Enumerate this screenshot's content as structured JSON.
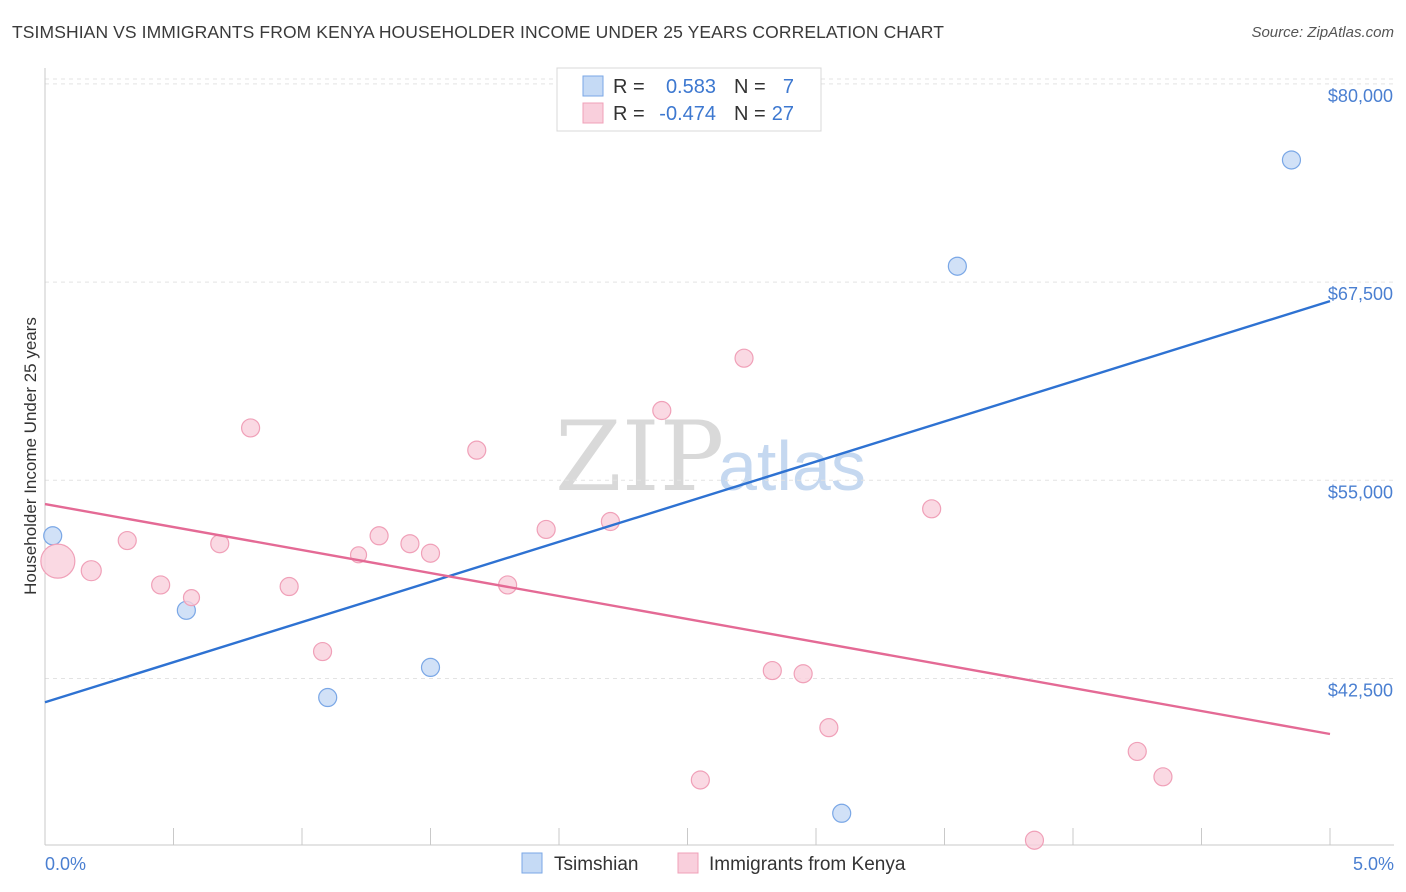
{
  "header": {
    "title": "TSIMSHIAN VS IMMIGRANTS FROM KENYA HOUSEHOLDER INCOME UNDER 25 YEARS CORRELATION CHART",
    "source": "Source: ZipAtlas.com"
  },
  "watermark": {
    "zip": "ZIP",
    "atlas": "atlas"
  },
  "chart_data": {
    "type": "scatter",
    "title": "TSIMSHIAN VS IMMIGRANTS FROM KENYA HOUSEHOLDER INCOME UNDER 25 YEARS CORRELATION CHART",
    "xlabel": "",
    "ylabel": "Householder Income Under 25 years",
    "xlim": [
      0,
      5
    ],
    "ylim": [
      32000,
      81000
    ],
    "x_tick_labels": [
      "0.0%",
      "5.0%"
    ],
    "y_ticks": [
      42500,
      55000,
      67500,
      80000
    ],
    "y_tick_labels": [
      "$42,500",
      "$55,000",
      "$67,500",
      "$80,000"
    ],
    "series": [
      {
        "name": "Tsimshian",
        "color": "#7aa7e6",
        "fill": "#c5daf5",
        "line_color": "#2e72d2",
        "R": "0.583",
        "N": "7",
        "points": [
          {
            "x": 0.03,
            "y": 51500,
            "size": 9
          },
          {
            "x": 0.55,
            "y": 46800,
            "size": 9
          },
          {
            "x": 1.1,
            "y": 41300,
            "size": 9
          },
          {
            "x": 1.5,
            "y": 43200,
            "size": 9
          },
          {
            "x": 3.1,
            "y": 34000,
            "size": 9
          },
          {
            "x": 3.55,
            "y": 68500,
            "size": 9
          },
          {
            "x": 4.85,
            "y": 75200,
            "size": 9
          }
        ],
        "trend": {
          "x0": 0,
          "y0": 41000,
          "x1": 5,
          "y1": 66300
        }
      },
      {
        "name": "Immigrants from Kenya",
        "color": "#f0a0b8",
        "fill": "#f9cfdc",
        "line_color": "#e46a95",
        "R": "-0.474",
        "N": "27",
        "points": [
          {
            "x": 0.05,
            "y": 49900,
            "size": 17
          },
          {
            "x": 0.18,
            "y": 49300,
            "size": 10
          },
          {
            "x": 0.32,
            "y": 51200,
            "size": 9
          },
          {
            "x": 0.45,
            "y": 48400,
            "size": 9
          },
          {
            "x": 0.57,
            "y": 47600,
            "size": 8
          },
          {
            "x": 0.68,
            "y": 51000,
            "size": 9
          },
          {
            "x": 0.8,
            "y": 58300,
            "size": 9
          },
          {
            "x": 0.95,
            "y": 48300,
            "size": 9
          },
          {
            "x": 1.08,
            "y": 44200,
            "size": 9
          },
          {
            "x": 1.22,
            "y": 50300,
            "size": 8
          },
          {
            "x": 1.3,
            "y": 51500,
            "size": 9
          },
          {
            "x": 1.42,
            "y": 51000,
            "size": 9
          },
          {
            "x": 1.5,
            "y": 50400,
            "size": 9
          },
          {
            "x": 1.68,
            "y": 56900,
            "size": 9
          },
          {
            "x": 1.8,
            "y": 48400,
            "size": 9
          },
          {
            "x": 1.95,
            "y": 51900,
            "size": 9
          },
          {
            "x": 2.2,
            "y": 52400,
            "size": 9
          },
          {
            "x": 2.4,
            "y": 59400,
            "size": 9
          },
          {
            "x": 2.55,
            "y": 36100,
            "size": 9
          },
          {
            "x": 2.72,
            "y": 62700,
            "size": 9
          },
          {
            "x": 2.83,
            "y": 43000,
            "size": 9
          },
          {
            "x": 2.95,
            "y": 42800,
            "size": 9
          },
          {
            "x": 3.05,
            "y": 39400,
            "size": 9
          },
          {
            "x": 3.45,
            "y": 53200,
            "size": 9
          },
          {
            "x": 3.85,
            "y": 32300,
            "size": 9
          },
          {
            "x": 4.25,
            "y": 37900,
            "size": 9
          },
          {
            "x": 4.35,
            "y": 36300,
            "size": 9
          }
        ],
        "trend": {
          "x0": 0,
          "y0": 53500,
          "x1": 5,
          "y1": 39000
        }
      }
    ]
  },
  "legend": {
    "r_label": "R =",
    "n_label": "N =",
    "rows": [
      {
        "r": "0.583",
        "n": "7"
      },
      {
        "r": "-0.474",
        "n": "27"
      }
    ]
  },
  "bottom_legend": [
    "Tsimshian",
    "Immigrants from Kenya"
  ]
}
